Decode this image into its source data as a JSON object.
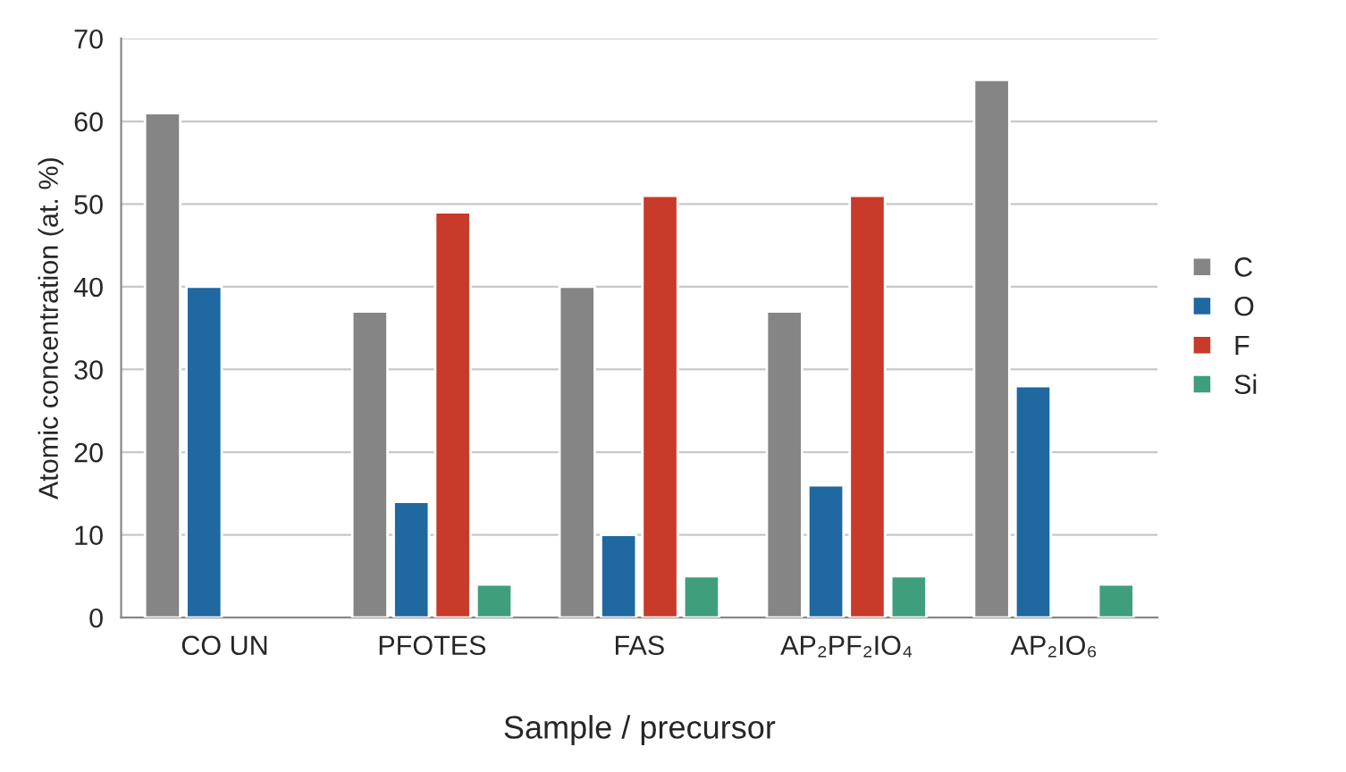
{
  "chart_data": {
    "type": "bar",
    "xlabel": "Sample / precursor",
    "ylabel": "Atomic concentration (at. %)",
    "categories": [
      "CO UN",
      "PFOTES",
      "FAS",
      "AP₂PF₂IO₄",
      "AP₂IO₆"
    ],
    "series": [
      {
        "name": "C",
        "color": "#858585",
        "values": [
          61,
          37,
          40,
          37,
          65
        ]
      },
      {
        "name": "O",
        "color": "#1f68a0",
        "values": [
          40,
          14,
          10,
          16,
          28
        ]
      },
      {
        "name": "F",
        "color": "#c83a2a",
        "values": [
          null,
          49,
          51,
          51,
          null
        ]
      },
      {
        "name": "Si",
        "color": "#3f9e7c",
        "values": [
          null,
          4,
          5,
          5,
          4
        ]
      }
    ],
    "ylim": [
      0,
      70
    ],
    "yticks": [
      0,
      10,
      20,
      30,
      40,
      50,
      60,
      70
    ],
    "grid": "y",
    "legend": "right"
  }
}
